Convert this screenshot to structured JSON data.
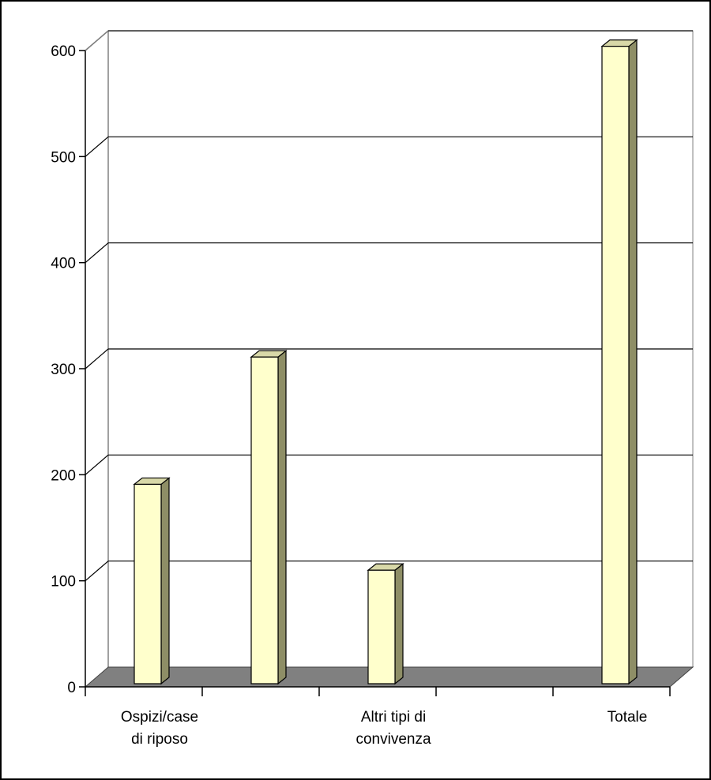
{
  "chart_data": {
    "type": "bar",
    "style": "3d-column",
    "categories": [
      [
        "Ospizi/case",
        "di riposo"
      ],
      [
        "",
        ""
      ],
      [
        "Altri tipi di",
        "convivenza"
      ],
      [
        "",
        ""
      ],
      [
        "Totale",
        ""
      ]
    ],
    "values": [
      188,
      308,
      107,
      null,
      601
    ],
    "yticks": [
      0,
      100,
      200,
      300,
      400,
      500,
      600
    ],
    "ylim": [
      0,
      600
    ],
    "grid": true,
    "legend": "none",
    "colors": {
      "bar_front": "#ffffcc",
      "bar_top": "#d8d8a8",
      "bar_side": "#8e8e66",
      "floor": "#808080",
      "grid": "#000000",
      "wall": "#ffffff"
    }
  }
}
